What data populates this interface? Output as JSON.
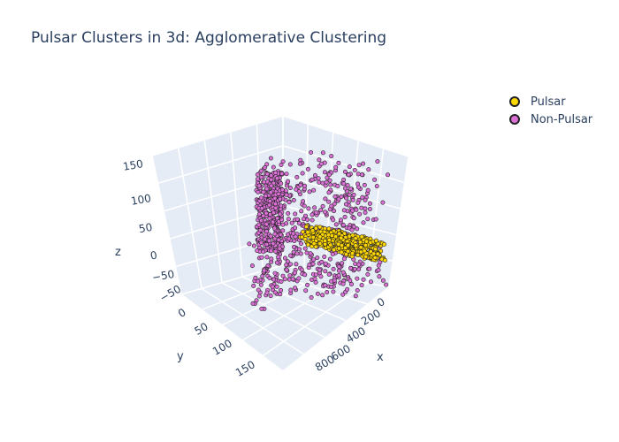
{
  "chart_data": {
    "type": "scatter",
    "title": "Pulsar Clusters in 3d: Agglomerative Clustering",
    "axes": {
      "x": {
        "label": "x",
        "ticks": [
          "0",
          "200",
          "400",
          "600",
          "800"
        ]
      },
      "y": {
        "label": "y",
        "ticks": [
          "−50",
          "0",
          "50",
          "100",
          "150"
        ]
      },
      "z": {
        "label": "z",
        "ticks": [
          "150",
          "100",
          "50",
          "0",
          "−50"
        ]
      }
    },
    "legend_position": "top-right",
    "series": [
      {
        "name": "Pulsar",
        "color": "#ffd700",
        "marker": "circle",
        "points_sampled": [
          [
            320,
            30,
            25
          ],
          [
            380,
            40,
            20
          ],
          [
            420,
            55,
            15
          ],
          [
            460,
            60,
            10
          ],
          [
            350,
            20,
            30
          ],
          [
            500,
            70,
            5
          ],
          [
            300,
            15,
            35
          ]
        ]
      },
      {
        "name": "Non-Pulsar",
        "color": "#da70d6",
        "marker": "circle",
        "points_sampled": [
          [
            20,
            -20,
            100
          ],
          [
            40,
            -10,
            120
          ],
          [
            60,
            0,
            90
          ],
          [
            100,
            10,
            140
          ],
          [
            150,
            20,
            110
          ],
          [
            10,
            30,
            60
          ],
          [
            0,
            60,
            20
          ]
        ]
      }
    ]
  }
}
